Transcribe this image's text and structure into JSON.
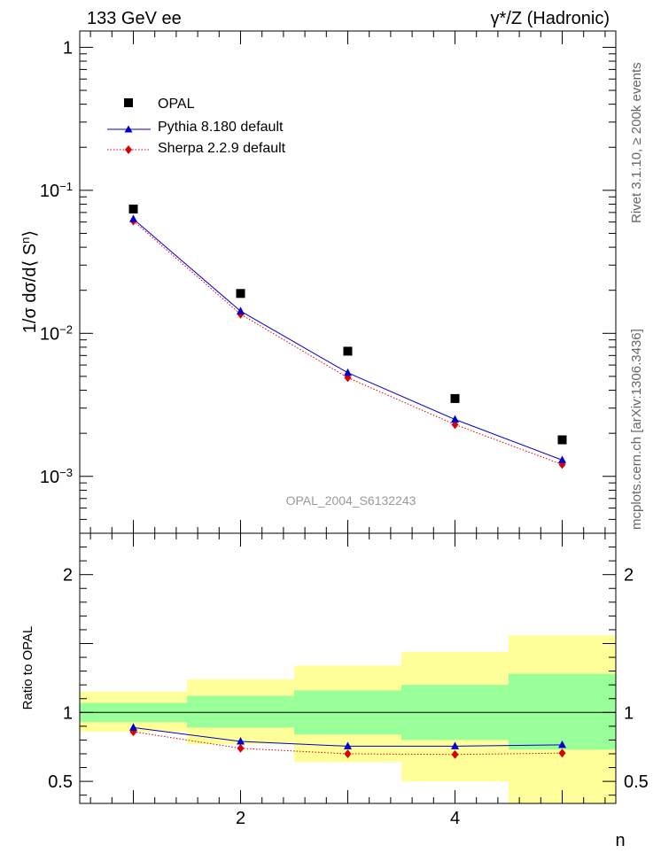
{
  "header": {
    "left": "133 GeV ee",
    "right": "γ*/Z (Hadronic)"
  },
  "side_labels": {
    "rivet": "Rivet 3.1.10, ≥ 200k events",
    "mcplots": "mcplots.cern.ch [arXiv:1306.3436]"
  },
  "analysis_id": "OPAL_2004_S6132243",
  "colors": {
    "data": "#000000",
    "pythia": "#0000cc",
    "sherpa": "#dd0000",
    "band_inner": "#99ff99",
    "band_outer": "#ffff99"
  },
  "chart_data": [
    {
      "type": "scatter",
      "scale": "log",
      "ylabel": "1/σ dσ/d⟨ Sⁿ⟩",
      "ylabel_parts": {
        "pre": "1/σ dσ/d⟨ S",
        "sup": "n",
        "post": "⟩"
      },
      "xlim": [
        0.5,
        5.5
      ],
      "ylim": [
        0.0004,
        1.3
      ],
      "yticks": [
        {
          "value": 1,
          "base": "1",
          "exp": ""
        },
        {
          "value": 0.1,
          "base": "10",
          "exp": "−1"
        },
        {
          "value": 0.01,
          "base": "10",
          "exp": "−2"
        },
        {
          "value": 0.001,
          "base": "10",
          "exp": "−3"
        }
      ],
      "x": [
        1,
        2,
        3,
        4,
        5
      ],
      "series": [
        {
          "name": "OPAL",
          "values": [
            0.074,
            0.019,
            0.0075,
            0.0035,
            0.0018
          ]
        },
        {
          "name": "Pythia 8.180 default",
          "values": [
            0.063,
            0.0143,
            0.0053,
            0.0025,
            0.0013
          ]
        },
        {
          "name": "Sherpa 2.2.9 default",
          "values": [
            0.061,
            0.0136,
            0.0049,
            0.0023,
            0.00121
          ]
        }
      ],
      "legend": [
        "OPAL",
        "Pythia 8.180 default",
        "Sherpa 2.2.9 default"
      ]
    },
    {
      "type": "line",
      "ylabel": "Ratio to OPAL",
      "xlabel": "n",
      "xlim": [
        0.5,
        5.5
      ],
      "ylim": [
        0.34,
        2.3
      ],
      "xticks": [
        2,
        4
      ],
      "yticks": [
        0.5,
        1,
        2
      ],
      "ytick_labels": [
        "0.5",
        "1",
        "2"
      ],
      "xtick_labels": [
        "2",
        "4"
      ],
      "x": [
        1,
        2,
        3,
        4,
        5
      ],
      "band_edges": [
        0.5,
        1.5,
        2.5,
        3.5,
        4.5,
        5.5
      ],
      "band_inner": [
        [
          0.93,
          1.07
        ],
        [
          0.89,
          1.12
        ],
        [
          0.84,
          1.16
        ],
        [
          0.8,
          1.2
        ],
        [
          0.73,
          1.28
        ]
      ],
      "band_outer": [
        [
          0.86,
          1.15
        ],
        [
          0.77,
          1.24
        ],
        [
          0.64,
          1.34
        ],
        [
          0.5,
          1.44
        ],
        [
          0.34,
          1.56
        ]
      ],
      "series": [
        {
          "name": "Pythia 8.180 default",
          "values": [
            0.89,
            0.79,
            0.755,
            0.755,
            0.765
          ]
        },
        {
          "name": "Sherpa 2.2.9 default",
          "values": [
            0.86,
            0.74,
            0.7,
            0.695,
            0.705
          ]
        }
      ]
    }
  ]
}
